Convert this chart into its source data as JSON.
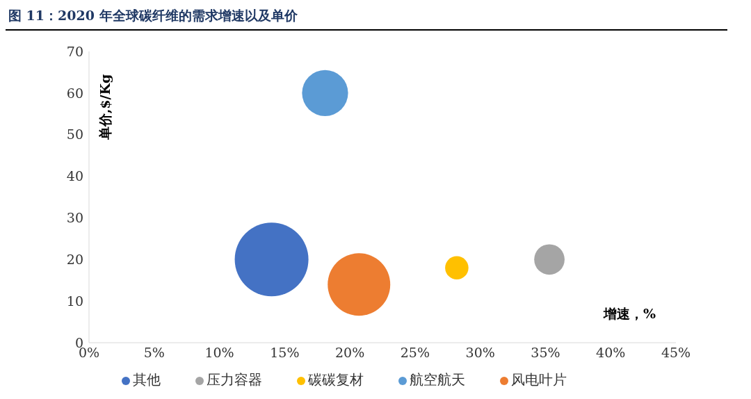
{
  "chart_data": {
    "type": "bubble",
    "title": "图 11：2020 年全球碳纤维的需求增速以及单价",
    "xlabel": "增速，%",
    "ylabel": "单价,$/Kg",
    "series": [
      {
        "name": "航空航天",
        "color": "#5b9bd5",
        "x": [
          18.1
        ],
        "values": [
          60
        ],
        "sizes": [
          0.39
        ]
      },
      {
        "name": "风电叶片",
        "color": "#ed7d31",
        "x": [
          20.7
        ],
        "values": [
          14
        ],
        "sizes": [
          0.72
        ]
      },
      {
        "name": "压力容器",
        "color": "#a5a5a5",
        "x": [
          35.3
        ],
        "values": [
          20
        ],
        "sizes": [
          0.17
        ]
      },
      {
        "name": "碳碳复材",
        "color": "#ffc000",
        "x": [
          28.2
        ],
        "values": [
          18
        ],
        "sizes": [
          0.1
        ]
      },
      {
        "name": "其他",
        "color": "#4472c4",
        "x": [
          14
        ],
        "values": [
          20
        ],
        "sizes": [
          1
        ]
      }
    ],
    "xlim": [
      0,
      45
    ],
    "xticks": [
      {
        "value": 0,
        "label": "0%"
      },
      {
        "value": 5,
        "label": "5%"
      },
      {
        "value": 10,
        "label": "10%"
      },
      {
        "value": 15,
        "label": "15%"
      },
      {
        "value": 20,
        "label": "20%"
      },
      {
        "value": 25,
        "label": "25%"
      },
      {
        "value": 30,
        "label": "30%"
      },
      {
        "value": 35,
        "label": "35%"
      },
      {
        "value": 40,
        "label": "40%"
      },
      {
        "value": 45,
        "label": "45%"
      }
    ],
    "ylim": [
      0,
      70
    ],
    "yticks": [
      0,
      10,
      20,
      30,
      40,
      50,
      60,
      70
    ],
    "grid": false,
    "legend": "bottom"
  }
}
